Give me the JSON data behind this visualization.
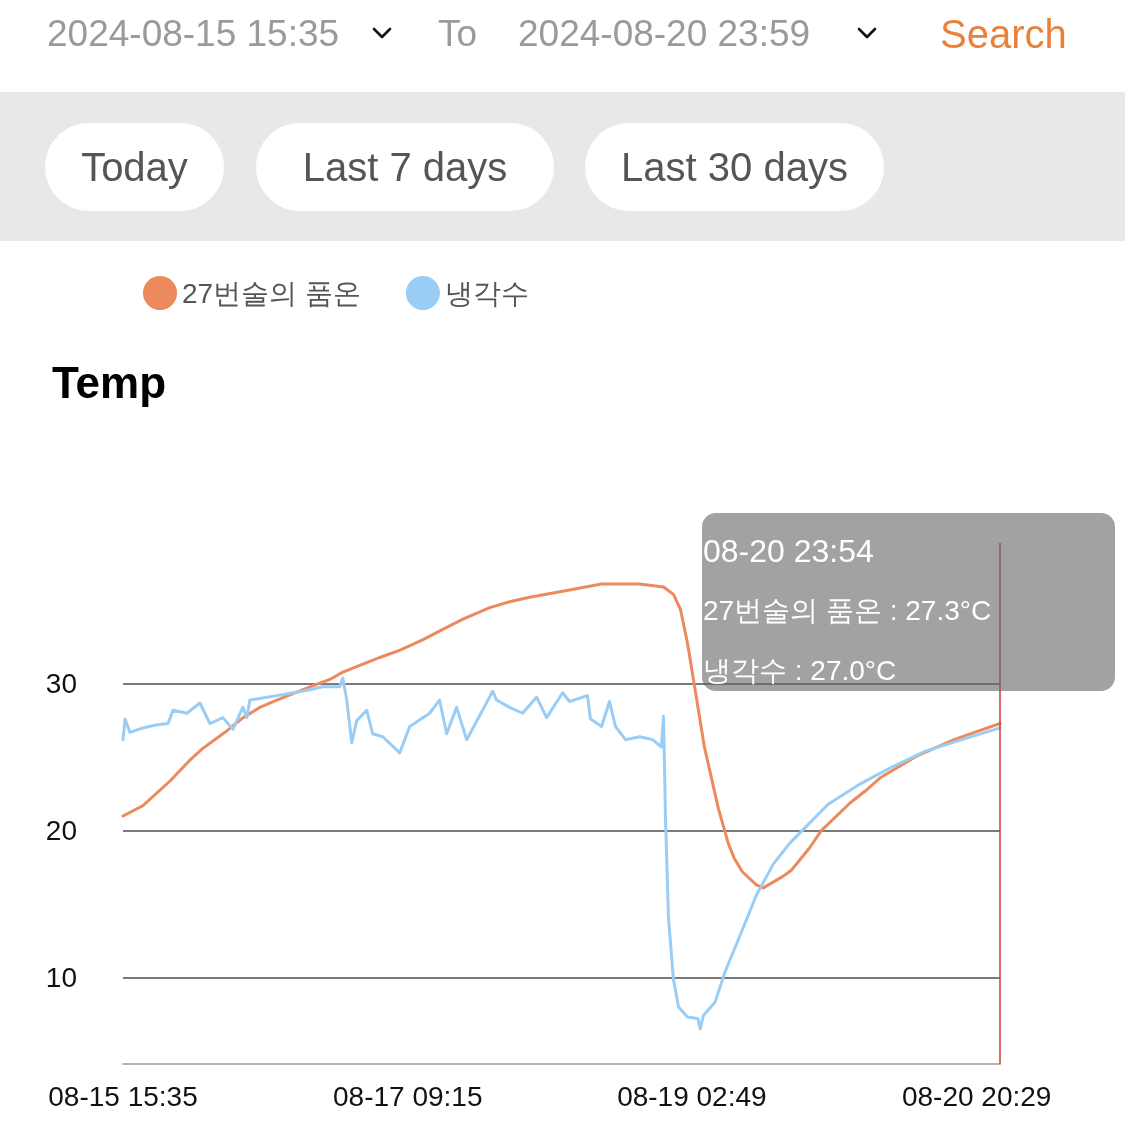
{
  "chart_data": {
    "type": "line",
    "title": "Temp",
    "annotations": [
      "2024-08-15 15:35",
      "To",
      "2024-08-20 23:59",
      "Search",
      "Today",
      "Last 7 days",
      "Last 30 days",
      "08-20 23:54",
      "27번술의 품온 : 27.3°C",
      "냉각수 : 27.0°C"
    ],
    "series": [
      {
        "name": "27번술의 품온",
        "color": "#ec8a5e",
        "x": [
          "2024-08-15T15:35",
          "2024-08-15T18:30",
          "2024-08-15T22:30",
          "2024-08-16T01:22",
          "2024-08-16T03:15",
          "2024-08-16T06:30",
          "2024-08-16T09:10",
          "2024-08-16T11:36",
          "2024-08-16T14:05",
          "2024-08-16T18:55",
          "2024-08-16T21:50",
          "2024-08-16T23:45",
          "2024-08-17T05:10",
          "2024-08-17T08:08",
          "2024-08-17T11:25",
          "2024-08-17T14:18",
          "2024-08-17T17:15",
          "2024-08-17T21:15",
          "2024-08-18T00:09",
          "2024-08-18T03:05",
          "2024-08-18T08:55",
          "2024-08-18T13:35",
          "2024-08-18T19:10",
          "2024-08-18T22:40",
          "2024-08-19T00:07",
          "2024-08-19T01:08",
          "2024-08-19T02:10",
          "2024-08-19T03:11",
          "2024-08-19T04:39",
          "2024-08-19T06:42",
          "2024-08-19T08:10",
          "2024-08-19T09:02",
          "2024-08-19T10:12",
          "2024-08-19T12:15",
          "2024-08-19T13:16",
          "2024-08-19T16:12",
          "2024-08-19T17:22",
          "2024-08-19T20:00",
          "2024-08-19T21:45",
          "2024-08-20T02:00",
          "2024-08-20T04:11",
          "2024-08-20T06:22",
          "2024-08-20T11:47",
          "2024-08-20T17:11",
          "2024-08-20T20:10",
          "2024-08-20T23:54"
        ],
        "values": [
          21.0,
          21.7,
          23.4,
          24.8,
          25.6,
          26.7,
          27.7,
          28.4,
          28.9,
          29.8,
          30.3,
          30.8,
          31.8,
          32.3,
          33.0,
          33.7,
          34.4,
          35.2,
          35.6,
          35.9,
          36.4,
          36.8,
          36.8,
          36.6,
          36.1,
          35.1,
          32.8,
          29.9,
          25.7,
          21.5,
          19.1,
          18.1,
          17.2,
          16.3,
          16.1,
          16.9,
          17.3,
          18.8,
          20.0,
          21.9,
          22.7,
          23.6,
          25.1,
          26.2,
          26.7,
          27.3
        ]
      },
      {
        "name": "냉각수",
        "color": "#9acdf5",
        "x": [
          "2024-08-15T15:35",
          "2024-08-15T15:53",
          "2024-08-15T16:36",
          "2024-08-15T18:30",
          "2024-08-15T20:24",
          "2024-08-15T22:10",
          "2024-08-15T22:54",
          "2024-08-16T00:56",
          "2024-08-16T02:50",
          "2024-08-16T04:18",
          "2024-08-16T06:12",
          "2024-08-16T07:40",
          "2024-08-16T09:07",
          "2024-08-16T09:42",
          "2024-08-16T10:09",
          "2024-08-16T14:06",
          "2024-08-16T18:55",
          "2024-08-16T20:48",
          "2024-08-16T23:18",
          "2024-08-16T23:45",
          "2024-08-17T00:19",
          "2024-08-17T01:03",
          "2024-08-17T01:47",
          "2024-08-17T03:15",
          "2024-08-17T04:07",
          "2024-08-17T05:35",
          "2024-08-17T08:04",
          "2024-08-17T09:32",
          "2024-08-17T12:27",
          "2024-08-17T13:54",
          "2024-08-17T14:56",
          "2024-08-17T16:24",
          "2024-08-17T17:52",
          "2024-08-17T20:12",
          "2024-08-17T21:40",
          "2024-08-17T22:15",
          "2024-08-18T00:09",
          "2024-08-18T02:03",
          "2024-08-18T04:06",
          "2024-08-18T05:34",
          "2024-08-18T07:54",
          "2024-08-18T08:55",
          "2024-08-18T11:33",
          "2024-08-18T11:59",
          "2024-08-18T13:36",
          "2024-08-18T14:46",
          "2024-08-18T15:38",
          "2024-08-18T17:06",
          "2024-08-18T19:10",
          "2024-08-18T21:04",
          "2024-08-18T22:22",
          "2024-08-18T22:40",
          "2024-08-18T22:57",
          "2024-08-18T23:24",
          "2024-08-19T00:07",
          "2024-08-19T00:51",
          "2024-08-19T02:10",
          "2024-08-19T03:41",
          "2024-08-19T04:03",
          "2024-08-19T04:30",
          "2024-08-19T06:12",
          "2024-08-19T07:41",
          "2024-08-19T09:44",
          "2024-08-19T12:15",
          "2024-08-19T14:42",
          "2024-08-19T17:03",
          "2024-08-19T18:57",
          "2024-08-19T22:45",
          "2024-08-20T03:08",
          "2024-08-20T07:31",
          "2024-08-20T12:54",
          "2024-08-20T18:18",
          "2024-08-20T23:54"
        ],
        "values": [
          26.2,
          27.6,
          26.7,
          27.0,
          27.2,
          27.3,
          28.2,
          28.0,
          28.7,
          27.3,
          27.7,
          26.9,
          28.4,
          27.7,
          28.9,
          29.2,
          29.6,
          29.8,
          29.8,
          30.4,
          28.9,
          26.0,
          27.5,
          28.2,
          26.6,
          26.4,
          25.3,
          27.1,
          28.0,
          28.9,
          26.6,
          28.4,
          26.2,
          28.2,
          29.5,
          28.9,
          28.4,
          28.0,
          29.1,
          27.7,
          29.4,
          28.8,
          29.2,
          27.6,
          27.1,
          28.8,
          27.1,
          26.2,
          26.4,
          26.2,
          25.7,
          27.8,
          21.0,
          14.0,
          9.9,
          8.0,
          7.3,
          7.2,
          6.5,
          7.4,
          8.3,
          10.4,
          12.7,
          15.6,
          17.7,
          19.1,
          20.0,
          21.8,
          23.1,
          24.2,
          25.4,
          26.2,
          27.0
        ]
      }
    ],
    "xlim": [
      "2024-08-15T15:35",
      "2024-08-20T23:54"
    ],
    "xticks": [
      {
        "value": "2024-08-15T15:35",
        "label": "08-15 15:35"
      },
      {
        "value": "2024-08-17T09:15",
        "label": "08-17 09:15"
      },
      {
        "value": "2024-08-19T02:49",
        "label": "08-19 02:49"
      },
      {
        "value": "2024-08-20T20:29",
        "label": "08-20 20:29"
      }
    ],
    "ylim": [
      4.1,
      39.6
    ],
    "yticks": [
      10,
      20,
      30
    ],
    "ref_lines": [
      {
        "axis": "x",
        "value": "2024-08-20T23:54",
        "color": "#cc3b33"
      }
    ],
    "grid": "y",
    "legend": "top left",
    "marker": "none",
    "line_style": "solid"
  }
}
